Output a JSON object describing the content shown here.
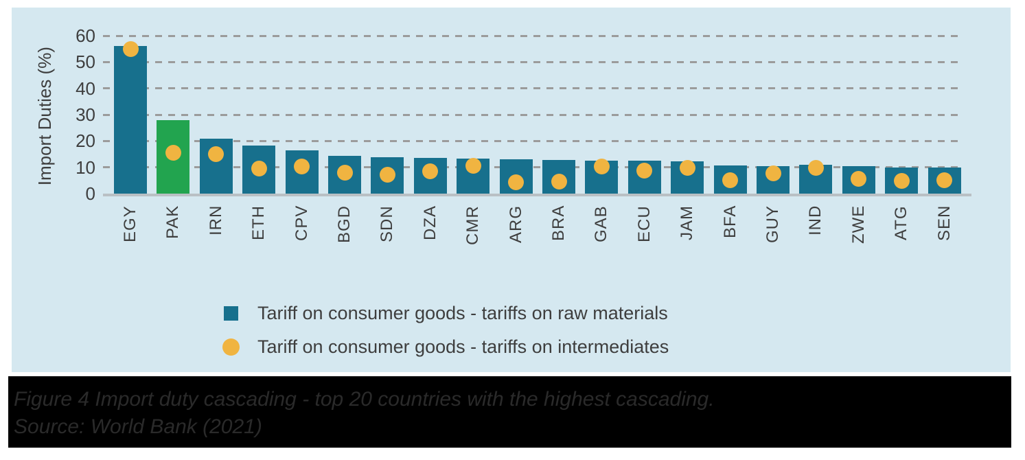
{
  "figure": {
    "caption_line1": "Figure 4 Import duty cascading - top 20 countries with the highest cascading.",
    "caption_line2": "Source: World Bank (2021)"
  },
  "chart_data": {
    "type": "bar",
    "title": "",
    "xlabel": "",
    "ylabel": "Import Duties (%)",
    "ylim": [
      0,
      60
    ],
    "yticks": [
      0,
      10,
      20,
      30,
      40,
      50,
      60
    ],
    "grid": "horizontal-dashed",
    "legend_position": "below-plot",
    "categories": [
      "EGY",
      "PAK",
      "IRN",
      "ETH",
      "CPV",
      "BGD",
      "SDN",
      "DZA",
      "CMR",
      "ARG",
      "BRA",
      "GAB",
      "ECU",
      "JAM",
      "BFA",
      "GUY",
      "IND",
      "ZWE",
      "ATG",
      "SEN"
    ],
    "series": [
      {
        "name": "Tariff on consumer goods - tariffs on raw materials",
        "type": "bar",
        "color": "#17708d",
        "values": [
          56,
          28,
          21,
          18.2,
          16.5,
          14.3,
          13.8,
          13.5,
          13.4,
          13.1,
          12.8,
          12.6,
          12.4,
          12.2,
          10.7,
          10.4,
          10.9,
          10.4,
          10,
          9.8
        ]
      },
      {
        "name": "Tariff on consumer goods - tariffs on intermediates",
        "type": "scatter",
        "color": "#f0b441",
        "values": [
          55,
          15.4,
          15.1,
          9.5,
          10.3,
          8,
          7.2,
          8.5,
          10.5,
          4.3,
          4.6,
          10.2,
          8.7,
          9.7,
          5,
          7.8,
          9.8,
          5.6,
          4.9,
          5.2
        ]
      }
    ],
    "highlight": {
      "category": "PAK",
      "color": "#22a44f"
    }
  },
  "colors": {
    "panel_background": "#d5e8f0",
    "page_background": "#ffffff",
    "gridline": "#9b9b9b",
    "baseline": "#b9c0c4",
    "axis_text": "#3e3e3e",
    "caption_background": "#000000",
    "caption_text": "#2a2a2a"
  }
}
